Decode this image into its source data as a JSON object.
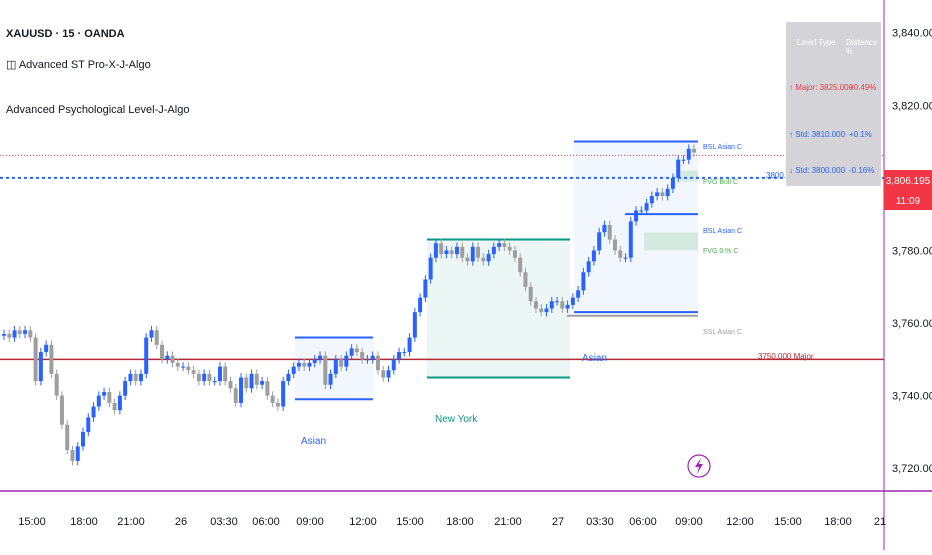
{
  "header": {
    "symbol_line": "XAUUSD · 15 · OANDA",
    "indicator_1": "◫ Advanced ST Pro-X-J-Algo",
    "indicator_2": "Advanced Psychological Level-J-Algo"
  },
  "level_table": {
    "col_1": "Level Type",
    "col_2": "Distance %",
    "rows": [
      {
        "type": "↑ Major: 3825.000",
        "distance": "+0.49%",
        "color": "#f23645"
      },
      {
        "type": "↑ Std: 3810.000",
        "distance": "+0.1%",
        "color": "#2962ff"
      },
      {
        "type": "↓ Std: 3800.000",
        "distance": "-0.16%",
        "color": "#2962ff"
      }
    ]
  },
  "price_axis": {
    "current_price": "3,806.195",
    "countdown": "11:09",
    "current_color": "#f23645"
  },
  "chart_data": {
    "type": "candlestick",
    "symbol": "XAUUSD",
    "timeframe": "15",
    "x_ticks": [
      "15:00",
      "18:00",
      "21:00",
      "26",
      "03:30",
      "06:00",
      "09:00",
      "12:00",
      "15:00",
      "18:00",
      "21:00",
      "27",
      "03:30",
      "06:00",
      "09:00",
      "12:00",
      "15:00",
      "18:00",
      "21"
    ],
    "y_ticks": [
      "3,840.000",
      "3,820.000",
      "3,800.000",
      "3,780.000",
      "3,760.000",
      "3,740.000",
      "3,720.000"
    ],
    "y_tick_values": [
      3840,
      3820,
      3800,
      3780,
      3760,
      3740,
      3720
    ],
    "ylim": [
      3714,
      3849
    ],
    "close_series": [
      3757,
      3756,
      3758,
      3757,
      3758,
      3756,
      3744,
      3752,
      3754,
      3746,
      3740,
      3732,
      3725,
      3722,
      3726,
      3730,
      3734,
      3737,
      3740,
      3741,
      3738,
      3736,
      3740,
      3744,
      3746,
      3744,
      3746,
      3756,
      3758,
      3754,
      3750,
      3751,
      3749,
      3748,
      3748,
      3747,
      3746,
      3744,
      3746,
      3744,
      3744,
      3748,
      3744,
      3742,
      3738,
      3745,
      3742,
      3746,
      3743,
      3744,
      3740,
      3738,
      3737,
      3744,
      3746,
      3748,
      3749,
      3748,
      3749,
      3750,
      3751,
      3743,
      3746,
      3750,
      3748,
      3751,
      3753,
      3752,
      3750,
      3750,
      3751,
      3747,
      3745,
      3747,
      3750,
      3752,
      3752,
      3756,
      3763,
      3767,
      3772,
      3778,
      3782,
      3779,
      3780,
      3779,
      3781,
      3778,
      3777,
      3781,
      3778,
      3777,
      3779,
      3781,
      3782,
      3781,
      3780,
      3778,
      3774,
      3770,
      3766,
      3764,
      3763,
      3764,
      3766,
      3766,
      3764,
      3765,
      3767,
      3769,
      3774,
      3777,
      3780,
      3785,
      3787,
      3783,
      3780,
      3778,
      3778,
      3788,
      3791,
      3791,
      3793,
      3795,
      3796,
      3795,
      3797,
      3800,
      3805,
      3805,
      3808,
      3807
    ],
    "annotations": [
      {
        "label": "Asian",
        "kind": "session",
        "color": "#2962ff"
      },
      {
        "label": "New York",
        "kind": "session",
        "color": "#089981"
      },
      {
        "label": "Asian",
        "kind": "session",
        "color": "#2962ff"
      },
      {
        "label": "BSL Asian C",
        "kind": "liquidity",
        "color": "#2962ff"
      },
      {
        "label": "FVG Bull C",
        "kind": "fvg",
        "color": "#4caf50"
      },
      {
        "label": "BSL Asian C",
        "kind": "liquidity",
        "color": "#2962ff"
      },
      {
        "label": "FVG 0.% C",
        "kind": "fvg",
        "color": "#4caf50"
      },
      {
        "label": "SSL Asian C",
        "kind": "liquidity",
        "color": "#9e9e9e"
      },
      {
        "label": "3750.000 Major",
        "kind": "psych_level",
        "value": 3750,
        "color": "#b22833"
      },
      {
        "label": "3800.000",
        "kind": "psych_level",
        "value": 3800,
        "color": "#2962ff"
      }
    ]
  }
}
